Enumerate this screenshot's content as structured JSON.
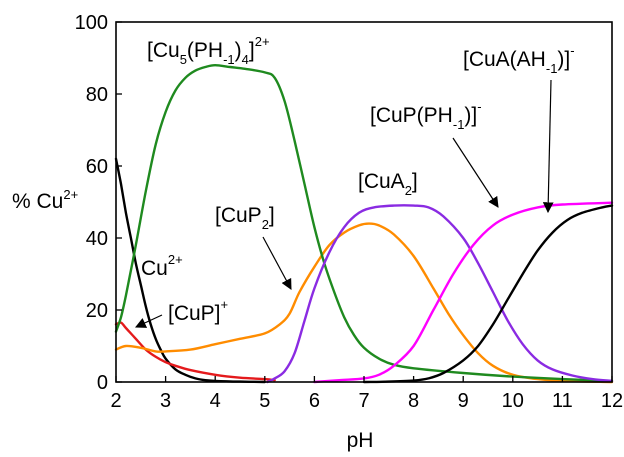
{
  "chart_data": {
    "type": "line",
    "xlabel": "pH",
    "ylabel_main": "% Cu",
    "ylabel_sup": "2+",
    "xlim": [
      2,
      12
    ],
    "ylim": [
      0,
      100
    ],
    "xticks": [
      2,
      3,
      4,
      5,
      6,
      7,
      8,
      9,
      10,
      11,
      12
    ],
    "yticks": [
      0,
      20,
      40,
      60,
      80,
      100
    ],
    "grid": false,
    "legend": "none",
    "series": [
      {
        "color": "#000000",
        "points": [
          [
            2.0,
            62
          ],
          [
            2.1,
            55
          ],
          [
            2.2,
            47
          ],
          [
            2.3,
            40
          ],
          [
            2.4,
            33
          ],
          [
            2.5,
            27
          ],
          [
            2.6,
            21
          ],
          [
            2.7,
            16
          ],
          [
            2.8,
            12
          ],
          [
            2.9,
            9
          ],
          [
            3.0,
            6.5
          ],
          [
            3.2,
            3.5
          ],
          [
            3.4,
            2
          ],
          [
            3.6,
            1
          ],
          [
            3.8,
            0.5
          ],
          [
            4.0,
            0.3
          ],
          [
            4.5,
            0.1
          ],
          [
            5.0,
            0
          ]
        ]
      },
      {
        "color": "#e41a1c",
        "points": [
          [
            2.0,
            16
          ],
          [
            2.1,
            16.5
          ],
          [
            2.2,
            15
          ],
          [
            2.4,
            12
          ],
          [
            2.6,
            9
          ],
          [
            2.8,
            7
          ],
          [
            3.0,
            5.5
          ],
          [
            3.2,
            4.5
          ],
          [
            3.5,
            3.3
          ],
          [
            4.0,
            2
          ],
          [
            4.5,
            1.2
          ],
          [
            5.0,
            0.8
          ],
          [
            5.2,
            0.5
          ]
        ]
      },
      {
        "color": "#ff8c00",
        "points": [
          [
            2.0,
            9
          ],
          [
            2.2,
            10
          ],
          [
            2.5,
            9.5
          ],
          [
            2.8,
            8.5
          ],
          [
            3.0,
            8.5
          ],
          [
            3.5,
            9
          ],
          [
            4.0,
            10.5
          ],
          [
            4.5,
            12
          ],
          [
            5.0,
            13.5
          ],
          [
            5.3,
            16
          ],
          [
            5.5,
            19
          ],
          [
            5.7,
            25
          ],
          [
            6.0,
            32
          ],
          [
            6.3,
            38
          ],
          [
            6.6,
            41.5
          ],
          [
            6.9,
            43.5
          ],
          [
            7.1,
            44
          ],
          [
            7.3,
            43.5
          ],
          [
            7.6,
            41
          ],
          [
            8.0,
            35
          ],
          [
            8.4,
            26
          ],
          [
            8.7,
            19
          ],
          [
            9.0,
            13
          ],
          [
            9.3,
            8
          ],
          [
            9.6,
            4.5
          ],
          [
            10.0,
            2
          ],
          [
            10.5,
            0.8
          ],
          [
            11.0,
            0.3
          ],
          [
            12.0,
            0
          ]
        ]
      },
      {
        "color": "#1f8a1f",
        "points": [
          [
            2.0,
            14
          ],
          [
            2.1,
            18
          ],
          [
            2.2,
            24
          ],
          [
            2.4,
            38
          ],
          [
            2.6,
            53
          ],
          [
            2.8,
            66
          ],
          [
            3.0,
            75
          ],
          [
            3.2,
            81
          ],
          [
            3.4,
            84.5
          ],
          [
            3.6,
            86.5
          ],
          [
            3.8,
            87.5
          ],
          [
            4.0,
            88
          ],
          [
            4.3,
            87.5
          ],
          [
            4.6,
            87
          ],
          [
            5.0,
            86
          ],
          [
            5.2,
            84.5
          ],
          [
            5.4,
            78
          ],
          [
            5.6,
            67
          ],
          [
            5.8,
            55
          ],
          [
            6.0,
            43
          ],
          [
            6.2,
            33
          ],
          [
            6.4,
            25
          ],
          [
            6.6,
            18
          ],
          [
            6.8,
            13
          ],
          [
            7.0,
            9.5
          ],
          [
            7.3,
            6.5
          ],
          [
            7.6,
            4.8
          ],
          [
            8.0,
            3.8
          ],
          [
            9.0,
            2.5
          ],
          [
            10.0,
            1.5
          ],
          [
            11.0,
            0.8
          ],
          [
            12.0,
            0.3
          ]
        ]
      },
      {
        "color": "#8a2be2",
        "points": [
          [
            5.05,
            0
          ],
          [
            5.2,
            1
          ],
          [
            5.4,
            3
          ],
          [
            5.6,
            8
          ],
          [
            5.8,
            17
          ],
          [
            6.0,
            26
          ],
          [
            6.3,
            36
          ],
          [
            6.6,
            43
          ],
          [
            6.9,
            47
          ],
          [
            7.2,
            48.5
          ],
          [
            7.6,
            49
          ],
          [
            8.0,
            49
          ],
          [
            8.3,
            48.5
          ],
          [
            8.6,
            46
          ],
          [
            9.0,
            40
          ],
          [
            9.3,
            33
          ],
          [
            9.6,
            25
          ],
          [
            9.9,
            17
          ],
          [
            10.2,
            10.5
          ],
          [
            10.5,
            6
          ],
          [
            10.8,
            3.5
          ],
          [
            11.2,
            1.8
          ],
          [
            11.6,
            0.8
          ],
          [
            12.0,
            0.3
          ]
        ]
      },
      {
        "color": "#ff00ff",
        "points": [
          [
            6.0,
            0
          ],
          [
            6.5,
            0.5
          ],
          [
            7.0,
            1
          ],
          [
            7.3,
            2
          ],
          [
            7.6,
            4.5
          ],
          [
            8.0,
            10
          ],
          [
            8.4,
            20
          ],
          [
            8.8,
            30
          ],
          [
            9.2,
            38
          ],
          [
            9.6,
            43.5
          ],
          [
            10.0,
            46.5
          ],
          [
            10.5,
            48.5
          ],
          [
            11.0,
            49.3
          ],
          [
            12.0,
            49.8
          ]
        ]
      },
      {
        "color": "#000000",
        "points": [
          [
            7.0,
            0
          ],
          [
            7.5,
            0.1
          ],
          [
            8.0,
            0.4
          ],
          [
            8.3,
            1
          ],
          [
            8.6,
            2.5
          ],
          [
            9.0,
            6
          ],
          [
            9.3,
            10
          ],
          [
            9.6,
            16
          ],
          [
            9.9,
            23
          ],
          [
            10.2,
            30
          ],
          [
            10.5,
            36.5
          ],
          [
            10.8,
            41.5
          ],
          [
            11.1,
            45
          ],
          [
            11.4,
            47
          ],
          [
            11.8,
            48.5
          ],
          [
            12.0,
            49
          ]
        ]
      }
    ],
    "annotations": [
      {
        "main": "[Cu",
        "sub": "5",
        "mid": "(PH",
        "sub2": "-1",
        "end": ")",
        "sub3": "4",
        "close": "]",
        "sup": "2+"
      },
      {
        "main": "[CuA(AH",
        "sub": "-1",
        "close": ")]",
        "sup": "-"
      },
      {
        "main": "[CuP(PH",
        "sub": "-1",
        "close": ")]",
        "sup": "-"
      },
      {
        "main": "[CuA",
        "sub": "2",
        "close": "]"
      },
      {
        "main": "[CuP",
        "sub": "2",
        "close": "]"
      },
      {
        "main": "Cu",
        "sup": "2+"
      },
      {
        "main": "[CuP]",
        "sup": "+"
      }
    ]
  }
}
